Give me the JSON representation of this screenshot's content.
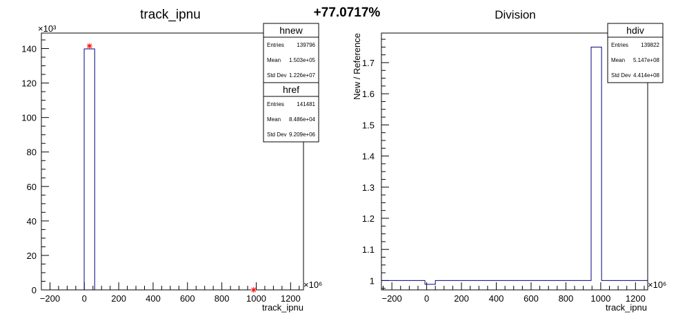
{
  "header": {
    "percent_change": "+77.0717%"
  },
  "chart_data": [
    {
      "type": "histogram",
      "title": "track_ipnu",
      "xlabel": "track_ipnu",
      "ylabel": "",
      "x_multiplier": "×10⁶",
      "y_multiplier": "×10³",
      "xlim": [
        -250,
        1275
      ],
      "ylim": [
        0,
        149
      ],
      "xticks": [
        -200,
        0,
        200,
        400,
        600,
        800,
        1000,
        1200
      ],
      "yticks": [
        0,
        20,
        40,
        60,
        80,
        100,
        120,
        140
      ],
      "xtick_labels": [
        "−200",
        "0",
        "200",
        "400",
        "600",
        "800",
        "1000",
        "1200"
      ],
      "ytick_labels": [
        "0",
        "20",
        "40",
        "60",
        "80",
        "100",
        "120",
        "140"
      ],
      "series": [
        {
          "name": "hnew",
          "color": "#00007f",
          "bins": [
            [
              -1,
              60,
              139.8
            ]
          ]
        },
        {
          "name": "href",
          "color": "#ff0000",
          "markers": [
            [
              30,
              141.5
            ],
            [
              985,
              0
            ]
          ]
        }
      ],
      "stats": [
        {
          "title": "hnew",
          "rows": [
            [
              "Entries",
              "139796"
            ],
            [
              "Mean",
              "1.503e+05"
            ],
            [
              "Std Dev",
              "1.226e+07"
            ]
          ]
        },
        {
          "title": "href",
          "rows": [
            [
              "Entries",
              "141481"
            ],
            [
              "Mean",
              "8.486e+04"
            ],
            [
              "Std Dev",
              "9.209e+06"
            ]
          ]
        }
      ]
    },
    {
      "type": "histogram",
      "title": "Division",
      "xlabel": "track_ipnu",
      "ylabel": "New / Reference",
      "x_multiplier": "×10⁶",
      "xlim": [
        -260,
        1270
      ],
      "ylim": [
        0.97,
        1.795
      ],
      "xticks": [
        -200,
        0,
        200,
        400,
        600,
        800,
        1000,
        1200
      ],
      "yticks": [
        1,
        1.1,
        1.2,
        1.3,
        1.4,
        1.5,
        1.6,
        1.7
      ],
      "xtick_labels": [
        "−200",
        "0",
        "200",
        "400",
        "600",
        "800",
        "1000",
        "1200"
      ],
      "ytick_labels": [
        "1",
        "1.1",
        "1.2",
        "1.3",
        "1.4",
        "1.5",
        "1.6",
        "1.7"
      ],
      "series": [
        {
          "name": "hdiv",
          "color": "#00007f",
          "steps": [
            [
              -260,
              1.0
            ],
            [
              -10,
              1.0
            ],
            [
              -10,
              0.988
            ],
            [
              50,
              0.988
            ],
            [
              50,
              1.0
            ],
            [
              945,
              1.0
            ],
            [
              945,
              1.75
            ],
            [
              1005,
              1.75
            ],
            [
              1005,
              1.0
            ],
            [
              1270,
              1.0
            ]
          ]
        }
      ],
      "stats": [
        {
          "title": "hdiv",
          "rows": [
            [
              "Entries",
              "139822"
            ],
            [
              "Mean",
              "5.147e+08"
            ],
            [
              "Std Dev",
              "4.414e+08"
            ]
          ]
        }
      ]
    }
  ]
}
